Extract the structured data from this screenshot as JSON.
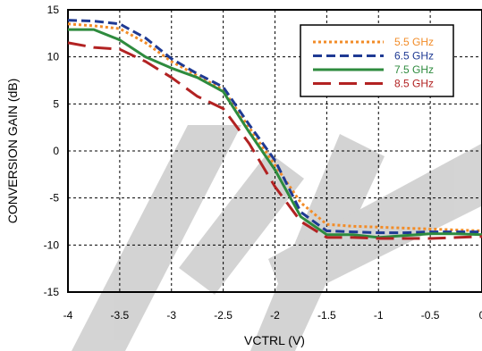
{
  "chart_data": {
    "type": "line",
    "xlabel": "VCTRL (V)",
    "ylabel": "CONVERSION GAIN (dB)",
    "xlim": [
      -4,
      0
    ],
    "ylim": [
      -15,
      15
    ],
    "x_ticks": [
      -4,
      -3.5,
      -3,
      -2.5,
      -2,
      -1.5,
      -1,
      -0.5,
      0
    ],
    "y_ticks": [
      -15,
      -10,
      -5,
      0,
      5,
      10,
      15
    ],
    "x_tick_labels": [
      "-4",
      "-3.5",
      "-3",
      "-2.5",
      "-2",
      "-1.5",
      "-1",
      "-0.5",
      "0"
    ],
    "y_tick_labels": [
      "-15",
      "-10",
      "-5",
      "0",
      "5",
      "10",
      "15"
    ],
    "grid": true,
    "legend_position": "top-right",
    "x": [
      -4,
      -3.75,
      -3.5,
      -3.25,
      -3,
      -2.75,
      -2.5,
      -2.25,
      -2,
      -1.75,
      -1.5,
      -1.25,
      -1,
      -0.75,
      -0.5,
      -0.25,
      0
    ],
    "series": [
      {
        "name": "5.5 GHz",
        "color": "#f28c28",
        "dash": "dotted",
        "values": [
          13.5,
          13.3,
          13.0,
          11.5,
          9.5,
          8.0,
          6.5,
          2.5,
          -1.5,
          -5.5,
          -7.8,
          -8.0,
          -8.1,
          -8.2,
          -8.3,
          -8.4,
          -8.5
        ]
      },
      {
        "name": "6.5 GHz",
        "color": "#1f3a93",
        "dash": "dashed",
        "values": [
          13.9,
          13.8,
          13.5,
          12.0,
          9.8,
          8.2,
          6.8,
          2.8,
          -1.0,
          -6.5,
          -8.5,
          -8.6,
          -8.7,
          -8.7,
          -8.6,
          -8.6,
          -8.6
        ]
      },
      {
        "name": "7.5 GHz",
        "color": "#2e8b3e",
        "dash": "solid",
        "values": [
          12.9,
          12.9,
          11.8,
          10.0,
          8.8,
          7.8,
          6.3,
          2.0,
          -2.0,
          -7.0,
          -8.9,
          -8.9,
          -9.2,
          -9.0,
          -8.8,
          -8.8,
          -8.9
        ]
      },
      {
        "name": "8.5 GHz",
        "color": "#b22222",
        "dash": "long-dash",
        "values": [
          11.5,
          11.0,
          10.8,
          9.5,
          7.8,
          5.8,
          4.5,
          0.8,
          -3.8,
          -7.5,
          -9.2,
          -9.2,
          -9.3,
          -9.3,
          -9.3,
          -9.2,
          -9.1
        ]
      }
    ]
  }
}
